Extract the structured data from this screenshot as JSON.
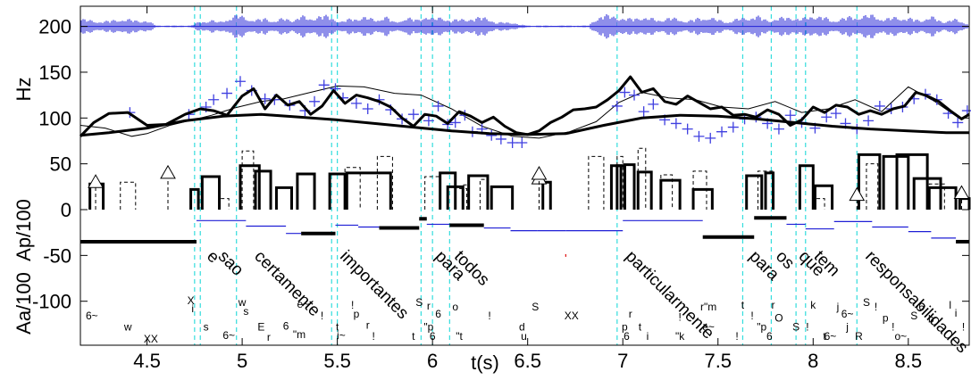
{
  "chart_data": {
    "type": "line",
    "xlabel": "t(s)",
    "xlim": [
      4.15,
      8.82
    ],
    "x_ticks": [
      "4.5",
      "5",
      "5.5",
      "6",
      "6.5",
      "7",
      "7.5",
      "8",
      "8.5"
    ],
    "y_left_labels": [
      "Hz",
      "Ap/100",
      "Aa/100"
    ],
    "y_ticks": [
      "200",
      "150",
      "100",
      "50",
      "0",
      "-50",
      "-100"
    ],
    "ylim": [
      -148,
      222
    ],
    "colors": {
      "waveform": "#1f1fd6",
      "f0_points": "#3f3fe0",
      "contour": "#000000",
      "boundary": "#33dddd",
      "accent_mark": "#dd0000"
    },
    "waveform_envelope": {
      "baseline": 200,
      "x": [
        4.15,
        4.22,
        4.28,
        4.35,
        4.42,
        4.5,
        4.55,
        4.62,
        4.68,
        4.73,
        4.78,
        4.84,
        4.88,
        4.94,
        4.98,
        5.03,
        5.08,
        5.12,
        5.17,
        5.22,
        5.26,
        5.31,
        5.36,
        5.4,
        5.46,
        5.52,
        5.58,
        5.64,
        5.7,
        5.75,
        5.8,
        5.86,
        5.92,
        5.96,
        6.0,
        6.05,
        6.1,
        6.16,
        6.22,
        6.28,
        6.33,
        6.4,
        6.46,
        6.52,
        6.58,
        6.64,
        6.7,
        6.76,
        6.82,
        6.88,
        6.94,
        6.99,
        7.04,
        7.09,
        7.14,
        7.19,
        7.24,
        7.29,
        7.34,
        7.4,
        7.45,
        7.5,
        7.55,
        7.6,
        7.65,
        7.7,
        7.76,
        7.82,
        7.88,
        7.94,
        8.0,
        8.05,
        8.1,
        8.15,
        8.2,
        8.26,
        8.32,
        8.38,
        8.44,
        8.5,
        8.56,
        8.62,
        8.68,
        8.74,
        8.8
      ],
      "amplitude": [
        9,
        7,
        6,
        9,
        8,
        7,
        1,
        1,
        1,
        1,
        6,
        8,
        5,
        12,
        14,
        10,
        8,
        10,
        7,
        10,
        8,
        13,
        9,
        14,
        12,
        6,
        10,
        12,
        8,
        13,
        5,
        11,
        8,
        14,
        9,
        12,
        7,
        10,
        9,
        13,
        4,
        6,
        2,
        1,
        1,
        1,
        1,
        1,
        1,
        14,
        13,
        11,
        9,
        12,
        10,
        8,
        11,
        9,
        7,
        10,
        12,
        8,
        6,
        9,
        11,
        13,
        8,
        10,
        12,
        9,
        14,
        12,
        7,
        10,
        12,
        13,
        14,
        9,
        12,
        10,
        8,
        12,
        6,
        9,
        4
      ]
    },
    "f0_points": {
      "x": [
        4.41,
        4.72,
        4.81,
        4.85,
        4.92,
        4.99,
        5.05,
        5.12,
        5.17,
        5.25,
        5.33,
        5.38,
        5.43,
        5.49,
        5.53,
        5.6,
        5.66,
        5.72,
        5.78,
        5.84,
        5.9,
        5.98,
        6.03,
        6.08,
        6.12,
        6.17,
        6.21,
        6.26,
        6.31,
        6.36,
        6.42,
        6.47,
        6.97,
        7.01,
        7.06,
        7.11,
        7.16,
        7.22,
        7.28,
        7.34,
        7.4,
        7.46,
        7.52,
        7.58,
        7.64,
        7.7,
        7.76,
        7.82,
        7.88,
        7.94,
        8.01,
        8.07,
        8.12,
        8.17,
        8.23,
        8.29,
        8.35,
        8.41,
        8.47,
        8.53,
        8.59,
        8.65,
        8.71,
        8.76,
        8.81
      ],
      "y": [
        106,
        104,
        112,
        120,
        127,
        140,
        130,
        121,
        120,
        114,
        108,
        118,
        136,
        132,
        122,
        116,
        110,
        120,
        109,
        99,
        104,
        97,
        113,
        93,
        95,
        103,
        85,
        88,
        81,
        77,
        73,
        73,
        113,
        128,
        125,
        107,
        115,
        98,
        94,
        88,
        80,
        78,
        85,
        90,
        99,
        101,
        94,
        88,
        103,
        95,
        89,
        101,
        105,
        94,
        88,
        97,
        113,
        110,
        112,
        121,
        126,
        120,
        105,
        95,
        108
      ]
    },
    "f0_contour": {
      "x": [
        4.15,
        4.22,
        4.3,
        4.4,
        4.5,
        4.6,
        4.7,
        4.78,
        4.85,
        4.92,
        5.0,
        5.06,
        5.12,
        5.18,
        5.24,
        5.3,
        5.36,
        5.42,
        5.48,
        5.54,
        5.6,
        5.66,
        5.72,
        5.78,
        5.84,
        5.9,
        5.96,
        6.02,
        6.08,
        6.14,
        6.2,
        6.26,
        6.32,
        6.38,
        6.44,
        6.5,
        6.56,
        6.62,
        6.68,
        6.74,
        6.8,
        6.86,
        6.92,
        6.98,
        7.04,
        7.1,
        7.16,
        7.22,
        7.28,
        7.34,
        7.4,
        7.46,
        7.52,
        7.58,
        7.64,
        7.7,
        7.76,
        7.82,
        7.88,
        7.94,
        8.0,
        8.06,
        8.12,
        8.18,
        8.24,
        8.3,
        8.36,
        8.42,
        8.48,
        8.54,
        8.6,
        8.66,
        8.72,
        8.78,
        8.82
      ],
      "y": [
        80,
        95,
        105,
        106,
        92,
        93,
        104,
        110,
        108,
        103,
        124,
        132,
        110,
        125,
        114,
        118,
        104,
        113,
        130,
        116,
        125,
        122,
        118,
        112,
        100,
        91,
        104,
        102,
        94,
        107,
        102,
        95,
        101,
        91,
        84,
        82,
        86,
        95,
        101,
        109,
        110,
        112,
        120,
        130,
        145,
        128,
        132,
        118,
        115,
        124,
        117,
        110,
        112,
        103,
        104,
        101,
        109,
        104,
        92,
        98,
        112,
        106,
        114,
        112,
        104,
        108,
        104,
        110,
        113,
        128,
        124,
        118,
        108,
        99,
        104
      ]
    },
    "phrase_contour": {
      "x": [
        4.15,
        4.3,
        4.5,
        4.7,
        4.9,
        5.1,
        5.3,
        5.5,
        5.7,
        5.9,
        6.1,
        6.3,
        6.5,
        6.7,
        6.9,
        7.1,
        7.3,
        7.5,
        7.7,
        7.9,
        8.1,
        8.3,
        8.5,
        8.7,
        8.82
      ],
      "y": [
        81,
        84,
        89,
        97,
        102,
        104,
        101,
        98,
        94,
        90,
        86,
        83,
        82,
        83,
        92,
        100,
        103,
        102,
        99,
        95,
        91,
        88,
        86,
        84,
        84
      ]
    },
    "thin_contour": {
      "x": [
        4.15,
        4.28,
        4.42,
        4.5,
        4.62,
        4.74,
        4.84,
        4.96,
        5.1,
        5.22,
        5.36,
        5.5,
        5.64,
        5.8,
        5.94,
        6.1,
        6.26,
        6.42,
        6.56,
        6.72,
        6.86,
        6.98,
        7.1,
        7.24,
        7.38,
        7.52,
        7.66,
        7.8,
        7.94,
        8.08,
        8.22,
        8.36,
        8.5,
        8.64,
        8.78,
        8.82
      ],
      "y": [
        92,
        89,
        80,
        83,
        92,
        98,
        103,
        111,
        118,
        121,
        128,
        135,
        134,
        127,
        125,
        110,
        91,
        80,
        78,
        85,
        96,
        117,
        128,
        122,
        120,
        112,
        110,
        118,
        106,
        110,
        120,
        107,
        134,
        118,
        98,
        104
      ]
    },
    "ap_bars": {
      "x0": [
        4.2,
        4.73,
        4.79,
        4.99,
        5.07,
        5.18,
        5.29,
        5.46,
        5.55,
        6.04,
        6.08,
        6.19,
        6.31,
        6.58,
        6.94,
        6.97,
        7.01,
        7.08,
        7.2,
        7.37,
        7.65,
        7.75,
        7.93,
        8.01,
        8.24,
        8.37,
        8.44,
        8.53,
        8.61,
        8.77
      ],
      "x1": [
        4.27,
        4.77,
        4.88,
        5.09,
        5.15,
        5.26,
        5.38,
        5.54,
        5.78,
        6.12,
        6.16,
        6.29,
        6.42,
        6.62,
        6.99,
        7.01,
        7.06,
        7.15,
        7.3,
        7.47,
        7.73,
        7.79,
        8.0,
        8.1,
        8.35,
        8.5,
        8.6,
        8.67,
        8.75,
        8.82
      ],
      "y": [
        28,
        22,
        36,
        48,
        42,
        24,
        39,
        39,
        40,
        40,
        25,
        37,
        25,
        30,
        48,
        48,
        49,
        41,
        32,
        22,
        37,
        40,
        48,
        26,
        60,
        58,
        60,
        34,
        24,
        12
      ]
    },
    "ap_dashed": {
      "x0": [
        4.36,
        4.88,
        5.0,
        5.54,
        5.71,
        5.96,
        6.12,
        6.16,
        6.25,
        6.82,
        6.97,
        7.08,
        7.2,
        7.37,
        7.71,
        8.01,
        8.28,
        8.61
      ],
      "x1": [
        4.44,
        4.93,
        5.06,
        5.62,
        5.79,
        6.04,
        6.18,
        6.19,
        6.29,
        6.9,
        7.0,
        7.12,
        7.26,
        7.44,
        7.79,
        8.06,
        8.34,
        8.69
      ],
      "y": [
        30,
        12,
        64,
        46,
        58,
        36,
        23,
        27,
        33,
        58,
        58,
        67,
        38,
        42,
        42,
        12,
        50,
        28
      ]
    },
    "aa_steps": {
      "x0": [
        4.15,
        4.76,
        5.02,
        5.23,
        5.31,
        5.49,
        5.61,
        5.72,
        5.93,
        5.97,
        6.09,
        6.27,
        6.41,
        6.55,
        6.7,
        7.0,
        7.42,
        7.69,
        7.86,
        7.96,
        8.11,
        8.31,
        8.5,
        8.62,
        8.75
      ],
      "x1": [
        4.76,
        5.02,
        5.23,
        5.31,
        5.49,
        5.61,
        5.72,
        5.93,
        5.97,
        6.09,
        6.27,
        6.41,
        6.55,
        6.7,
        7.0,
        7.42,
        7.69,
        7.86,
        7.96,
        8.11,
        8.31,
        8.5,
        8.62,
        8.75,
        8.82
      ],
      "y": [
        -35,
        -12,
        -18,
        -26,
        -26,
        -17,
        -19,
        -20,
        -10,
        -16,
        -17,
        -20,
        -23,
        -23,
        -23,
        -12,
        -30,
        -9,
        -16,
        -21,
        -13,
        -19,
        -24,
        -31,
        -35
      ],
      "bold": [
        true,
        false,
        false,
        false,
        true,
        false,
        false,
        true,
        true,
        false,
        true,
        false,
        false,
        false,
        false,
        false,
        true,
        true,
        false,
        false,
        false,
        false,
        false,
        false,
        true
      ]
    },
    "accent_triangles": {
      "x": [
        4.23,
        4.61,
        6.56,
        6.56,
        8.23,
        8.78
      ],
      "y": [
        30,
        40,
        34,
        39,
        16,
        18
      ]
    },
    "boundaries": [
      4.75,
      4.78,
      4.97,
      5.47,
      5.5,
      5.94,
      6.0,
      6.09,
      6.97,
      7.63,
      7.78,
      7.91,
      7.96,
      8.23
    ],
    "words": [
      {
        "x": 4.81,
        "text": "e"
      },
      {
        "x": 4.87,
        "text": "sao"
      },
      {
        "x": 5.06,
        "text": "certamente"
      },
      {
        "x": 5.51,
        "text": "importantes"
      },
      {
        "x": 6.01,
        "text": "para"
      },
      {
        "x": 6.11,
        "text": "todos"
      },
      {
        "x": 7.01,
        "text": "particularmente"
      },
      {
        "x": 7.66,
        "text": "para"
      },
      {
        "x": 7.8,
        "text": "os"
      },
      {
        "x": 7.92,
        "text": "que"
      },
      {
        "x": 8.0,
        "text": "tem"
      },
      {
        "x": 8.27,
        "text": "responsabilidades"
      }
    ],
    "phones": [
      {
        "x": 4.21,
        "y": -120,
        "text": "6~"
      },
      {
        "x": 4.4,
        "y": -132,
        "text": "w"
      },
      {
        "x": 4.52,
        "y": -145,
        "text": "XX"
      },
      {
        "x": 4.73,
        "y": -103,
        "text": "X"
      },
      {
        "x": 4.74,
        "y": -112,
        "text": "i"
      },
      {
        "x": 4.81,
        "y": -132,
        "text": "s"
      },
      {
        "x": 4.93,
        "y": -141,
        "text": "6~"
      },
      {
        "x": 5.0,
        "y": -105,
        "text": "w"
      },
      {
        "x": 5.02,
        "y": -115,
        "text": "s"
      },
      {
        "x": 5.1,
        "y": -132,
        "text": "E"
      },
      {
        "x": 5.14,
        "y": -143,
        "text": "r"
      },
      {
        "x": 5.23,
        "y": -131,
        "text": "6"
      },
      {
        "x": 5.3,
        "y": -140,
        "text": "\"m"
      },
      {
        "x": 5.32,
        "y": -107,
        "text": "e~"
      },
      {
        "x": 5.42,
        "y": -120,
        "text": "!"
      },
      {
        "x": 5.5,
        "y": -132,
        "text": "t"
      },
      {
        "x": 5.52,
        "y": -141,
        "text": "i~"
      },
      {
        "x": 5.58,
        "y": -108,
        "text": "!"
      },
      {
        "x": 5.6,
        "y": -118,
        "text": "p"
      },
      {
        "x": 5.66,
        "y": -130,
        "text": "r"
      },
      {
        "x": 5.69,
        "y": -142,
        "text": "!"
      },
      {
        "x": 5.93,
        "y": -105,
        "text": "S"
      },
      {
        "x": 5.98,
        "y": -109,
        "text": "r"
      },
      {
        "x": 6.03,
        "y": -118,
        "text": "6"
      },
      {
        "x": 5.9,
        "y": -142,
        "text": "t"
      },
      {
        "x": 5.98,
        "y": -132,
        "text": "\"p"
      },
      {
        "x": 6.0,
        "y": -142,
        "text": "6"
      },
      {
        "x": 6.12,
        "y": -110,
        "text": "o"
      },
      {
        "x": 6.3,
        "y": -120,
        "text": "!"
      },
      {
        "x": 6.14,
        "y": -142,
        "text": "\"t"
      },
      {
        "x": 6.47,
        "y": -132,
        "text": "d"
      },
      {
        "x": 6.48,
        "y": -142,
        "text": "u"
      },
      {
        "x": 6.54,
        "y": -110,
        "text": "S"
      },
      {
        "x": 6.73,
        "y": -120,
        "text": "XX"
      },
      {
        "x": 7.04,
        "y": -118,
        "text": "r"
      },
      {
        "x": 7.01,
        "y": -132,
        "text": "p"
      },
      {
        "x": 7.02,
        "y": -142,
        "text": "6"
      },
      {
        "x": 7.09,
        "y": -132,
        "text": "t"
      },
      {
        "x": 7.13,
        "y": -142,
        "text": "i"
      },
      {
        "x": 7.3,
        "y": -121,
        "text": "!"
      },
      {
        "x": 7.3,
        "y": -142,
        "text": "\"k"
      },
      {
        "x": 7.45,
        "y": -110,
        "text": "r\"m"
      },
      {
        "x": 7.45,
        "y": -132,
        "text": "e~"
      },
      {
        "x": 7.6,
        "y": -142,
        "text": "!"
      },
      {
        "x": 7.63,
        "y": -108,
        "text": "t"
      },
      {
        "x": 7.68,
        "y": -120,
        "text": "!"
      },
      {
        "x": 7.73,
        "y": -132,
        "text": "\"p"
      },
      {
        "x": 7.77,
        "y": -142,
        "text": "6"
      },
      {
        "x": 7.79,
        "y": -108,
        "text": "r"
      },
      {
        "x": 7.82,
        "y": -122,
        "text": "O"
      },
      {
        "x": 7.91,
        "y": -132,
        "text": "S"
      },
      {
        "x": 7.97,
        "y": -132,
        "text": "!"
      },
      {
        "x": 8.0,
        "y": -108,
        "text": "k"
      },
      {
        "x": 8.06,
        "y": -142,
        "text": "t"
      },
      {
        "x": 8.09,
        "y": -142,
        "text": "6~"
      },
      {
        "x": 8.13,
        "y": -110,
        "text": "j"
      },
      {
        "x": 8.18,
        "y": -118,
        "text": "6~"
      },
      {
        "x": 8.18,
        "y": -132,
        "text": "j"
      },
      {
        "x": 8.24,
        "y": -142,
        "text": "R"
      },
      {
        "x": 8.28,
        "y": -105,
        "text": "S"
      },
      {
        "x": 8.33,
        "y": -110,
        "text": "!"
      },
      {
        "x": 8.38,
        "y": -122,
        "text": "p"
      },
      {
        "x": 8.42,
        "y": -132,
        "text": "!"
      },
      {
        "x": 8.46,
        "y": -142,
        "text": "o~"
      },
      {
        "x": 8.53,
        "y": -120,
        "text": "S"
      },
      {
        "x": 8.57,
        "y": -110,
        "text": "6"
      },
      {
        "x": 8.62,
        "y": -123,
        "text": "b"
      },
      {
        "x": 8.72,
        "y": -108,
        "text": "l"
      },
      {
        "x": 8.75,
        "y": -117,
        "text": "i"
      },
      {
        "x": 8.79,
        "y": -132,
        "text": "!"
      }
    ],
    "red_mark": {
      "x": 6.7,
      "y": -58,
      "text": "'"
    }
  }
}
